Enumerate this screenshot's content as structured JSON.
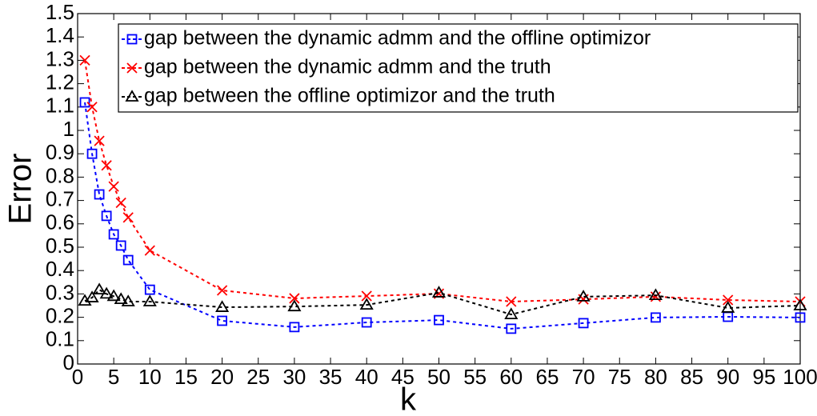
{
  "chart_data": {
    "type": "line",
    "xlabel": "k",
    "ylabel": "Error",
    "x": [
      1,
      2,
      3,
      4,
      5,
      6,
      7,
      10,
      20,
      30,
      40,
      50,
      60,
      70,
      80,
      90,
      100
    ],
    "series": [
      {
        "name": "gap between the dynamic admm and the offline optimizor",
        "color": "#0000ff",
        "marker": "square",
        "values": [
          1.12,
          0.9,
          0.726,
          0.634,
          0.555,
          0.507,
          0.445,
          0.318,
          0.185,
          0.158,
          0.178,
          0.188,
          0.151,
          0.175,
          0.199,
          0.202,
          0.199
        ]
      },
      {
        "name": "gap between the dynamic admm and the truth",
        "color": "#ff0000",
        "marker": "x",
        "values": [
          1.3,
          1.1,
          0.955,
          0.85,
          0.76,
          0.69,
          0.627,
          0.486,
          0.315,
          0.281,
          0.291,
          0.301,
          0.267,
          0.277,
          0.288,
          0.274,
          0.267
        ]
      },
      {
        "name": "gap between the offline optimizor and the truth",
        "color": "#000000",
        "marker": "triangle",
        "values": [
          0.27,
          0.284,
          0.318,
          0.3,
          0.29,
          0.277,
          0.267,
          0.267,
          0.243,
          0.246,
          0.253,
          0.305,
          0.212,
          0.288,
          0.294,
          0.24,
          0.25
        ]
      }
    ],
    "xlim": [
      0,
      100
    ],
    "xticks": [
      0,
      5,
      10,
      15,
      20,
      25,
      30,
      35,
      40,
      45,
      50,
      55,
      60,
      65,
      70,
      75,
      80,
      85,
      90,
      95,
      100
    ],
    "ylim": [
      0,
      1.5
    ],
    "yticks": [
      0,
      0.1,
      0.2,
      0.3,
      0.4,
      0.5,
      0.6,
      0.7,
      0.8,
      0.9,
      1,
      1.1,
      1.2,
      1.3,
      1.4,
      1.5
    ],
    "legend": "upper left"
  }
}
